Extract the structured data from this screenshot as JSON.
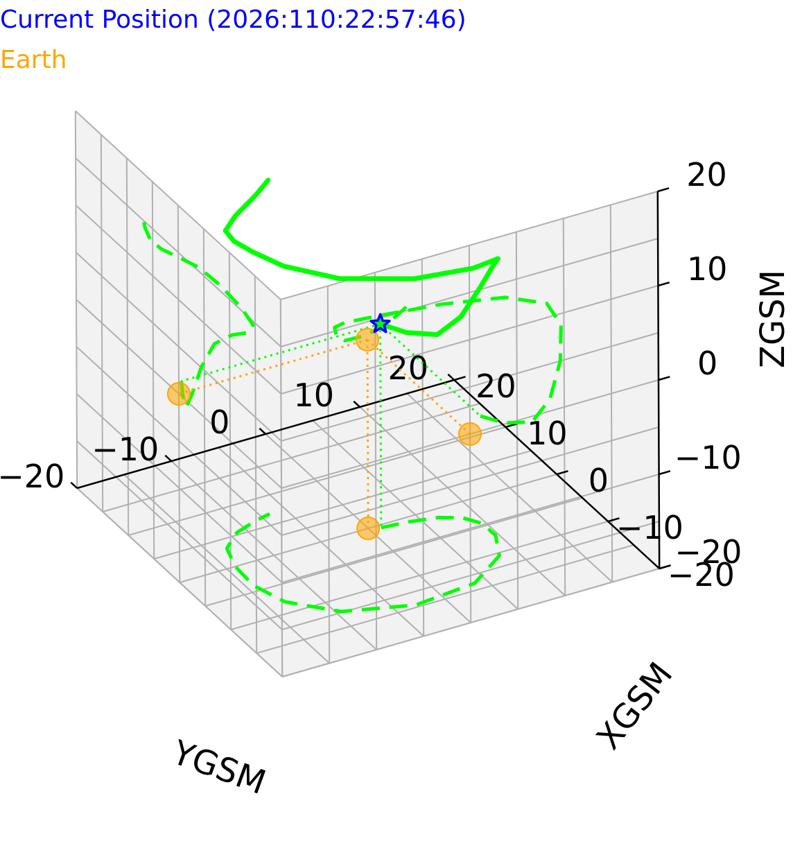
{
  "legend": {
    "current_position": "Current Position (2026:110:22:57:46)",
    "earth": "Earth"
  },
  "colors": {
    "current_position": "#0000ff",
    "earth": "#ffa500",
    "orbit": "#00ff00",
    "pane": "#f2f2f2",
    "grid": "#b0b0b0"
  },
  "chart_data": {
    "type": "line",
    "projection": "3d",
    "xlabel": "XGSM",
    "ylabel": "YGSM",
    "zlabel": "ZGSM",
    "xlim": [
      -20,
      20
    ],
    "ylim": [
      -20,
      20
    ],
    "zlim": [
      -20,
      20
    ],
    "x_ticks": [
      "−20",
      "−10",
      "0",
      "10",
      "20"
    ],
    "y_ticks": [
      "−20",
      "−10",
      "0",
      "10",
      "20"
    ],
    "z_ticks": [
      "−20",
      "−10",
      "0",
      "10",
      "20"
    ],
    "grid": true,
    "legend_placement": "top-left",
    "orbit": {
      "description": "spacecraft orbit in GSM coordinates",
      "x": [
        -0.5,
        -0.8,
        -1.5,
        -2.6,
        -4.4,
        -7.0,
        -10.5,
        -13.8,
        -14.6,
        -12.2,
        -8.0,
        -3.9,
        0.0,
        3.3,
        5.4,
        6.5,
        6.9
      ],
      "y": [
        1.1,
        3.7,
        6.6,
        8.5,
        9.6,
        9.7,
        8.2,
        3.8,
        -2.9,
        -9.5,
        -13.2,
        -14.3,
        -14.1,
        -13.2,
        -11.0,
        -8.3,
        -6.7
      ],
      "z": [
        1.6,
        0.1,
        -0.6,
        1.3,
        5.0,
        8.8,
        11.5,
        13.4,
        14.6,
        15.3,
        15.6,
        15.4,
        14.5,
        13.7,
        13.6,
        14.4,
        15.4
      ]
    },
    "current_position": {
      "x": -0.5,
      "y": 1.1,
      "z": 1.6
    },
    "earth": {
      "x": 0,
      "y": 0,
      "z": 0
    },
    "projections": [
      "xy-plane (z=-20)",
      "yz-plane (x=-20)",
      "xz-plane (y=20)"
    ]
  }
}
